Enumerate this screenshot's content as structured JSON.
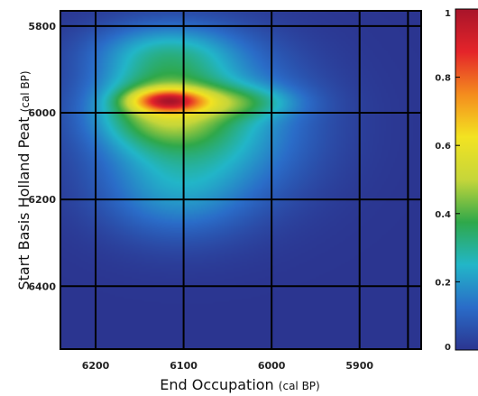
{
  "chart_data": {
    "type": "heatmap",
    "title": "",
    "xlabel": "End Occupation",
    "xlabel_unit": "(cal BP)",
    "ylabel": "Start Basis Holland Peat",
    "ylabel_unit": "(cal BP)",
    "x_reversed": true,
    "y_reversed": true,
    "xlim": [
      6240,
      5830
    ],
    "ylim": [
      5765,
      6545
    ],
    "xticks": [
      6200,
      6100,
      6000,
      5900
    ],
    "yticks": [
      5800,
      6000,
      6200,
      6400
    ],
    "grid": true,
    "gridlines_x": [
      6200,
      6100,
      6000,
      5900,
      5845
    ],
    "gridlines_y": [
      5800,
      6000,
      6200,
      6400
    ],
    "colorbar": {
      "range": [
        0,
        1
      ],
      "ticks": [
        "0",
        "0.2",
        "0.4",
        "0.6",
        "0.8",
        "1"
      ],
      "colormap": [
        "#2b3590",
        "#2a6cc8",
        "#22b6c8",
        "#2fa84a",
        "#c6d63a",
        "#f3e321",
        "#f48c1e",
        "#e4242a",
        "#a8142a"
      ]
    },
    "density_peak": {
      "x": 6115,
      "y": 5970,
      "value": 1.0
    },
    "components": [
      {
        "x": 6118,
        "y": 5972,
        "sx": 28,
        "sy": 18,
        "w": 1.0
      },
      {
        "x": 6125,
        "y": 5990,
        "sx": 48,
        "sy": 60,
        "w": 0.55
      },
      {
        "x": 6080,
        "y": 6030,
        "sx": 75,
        "sy": 110,
        "w": 0.45
      },
      {
        "x": 6120,
        "y": 5860,
        "sx": 55,
        "sy": 45,
        "w": 0.32
      },
      {
        "x": 6040,
        "y": 5975,
        "sx": 45,
        "sy": 25,
        "w": 0.3
      },
      {
        "x": 6110,
        "y": 6190,
        "sx": 55,
        "sy": 70,
        "w": 0.18
      }
    ],
    "background_color": "#2b3590"
  }
}
